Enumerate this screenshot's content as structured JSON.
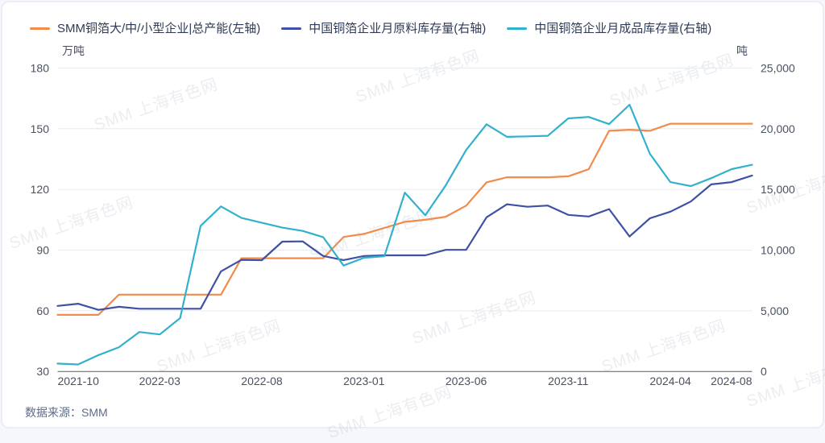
{
  "watermark": {
    "text": "SMM 上海有色网"
  },
  "footer": {
    "source_label": "数据来源：SMM"
  },
  "chart_data": {
    "type": "line",
    "title": "",
    "grid": true,
    "legend_position": "top",
    "x_categories": [
      "2021-10",
      "2021-11",
      "2021-12",
      "2022-01",
      "2022-02",
      "2022-03",
      "2022-04",
      "2022-05",
      "2022-06",
      "2022-07",
      "2022-08",
      "2022-09",
      "2022-10",
      "2022-11",
      "2022-12",
      "2023-01",
      "2023-02",
      "2023-03",
      "2023-04",
      "2023-05",
      "2023-06",
      "2023-07",
      "2023-08",
      "2023-09",
      "2023-10",
      "2023-11",
      "2023-12",
      "2024-01",
      "2024-02",
      "2024-03",
      "2024-04",
      "2024-05",
      "2024-06",
      "2024-07",
      "2024-08"
    ],
    "x_tick_labels": [
      "2021-10",
      "2022-03",
      "2022-08",
      "2023-01",
      "2023-06",
      "2023-11",
      "2024-04",
      "2024-08"
    ],
    "x_tick_indices": [
      0,
      5,
      10,
      15,
      20,
      25,
      30,
      34
    ],
    "left_axis": {
      "name": "万吨",
      "min": 30,
      "max": 180,
      "ticks": [
        30,
        60,
        90,
        120,
        150,
        180
      ],
      "tick_labels": [
        "30",
        "60",
        "90",
        "120",
        "150",
        "180"
      ]
    },
    "right_axis": {
      "name": "吨",
      "min": 0,
      "max": 25000,
      "ticks": [
        0,
        5000,
        10000,
        15000,
        20000,
        25000
      ],
      "tick_labels": [
        "0",
        "5,000",
        "10,000",
        "15,000",
        "20,000",
        "25,000"
      ]
    },
    "series": [
      {
        "name": "SMM铜箔大/中/小型企业|总产能(左轴)",
        "axis": "left",
        "unit": "万吨",
        "color": "#F28B4B",
        "values": [
          58,
          58,
          58,
          68,
          68,
          68,
          68,
          68,
          68,
          86,
          86,
          86,
          86,
          86,
          96.5,
          98,
          101,
          104,
          105,
          106.5,
          112,
          123.5,
          126,
          126,
          126,
          126.5,
          130,
          149,
          149.5,
          149,
          152.5,
          152.5,
          152.5,
          152.5,
          152.5
        ]
      },
      {
        "name": "中国铜箔企业月原料库存量(右轴)",
        "axis": "right",
        "unit": "吨",
        "color": "#3F51A3",
        "values": [
          5400,
          5580,
          5080,
          5330,
          5170,
          5170,
          5170,
          5170,
          8250,
          9200,
          9170,
          10700,
          10720,
          9520,
          9180,
          9520,
          9570,
          9570,
          9570,
          10020,
          10020,
          12700,
          13780,
          13570,
          13670,
          12900,
          12770,
          13380,
          11120,
          12620,
          13170,
          14000,
          15420,
          15600,
          16150
        ]
      },
      {
        "name": "中国铜箔企业月成品库存量(右轴)",
        "axis": "right",
        "unit": "吨",
        "color": "#32B1CC",
        "values": [
          650,
          580,
          1350,
          2000,
          3250,
          3050,
          4400,
          12000,
          13600,
          12650,
          12250,
          11850,
          11580,
          11070,
          8730,
          9370,
          9500,
          14730,
          12870,
          15330,
          18250,
          20370,
          19330,
          19370,
          19420,
          20850,
          20970,
          20380,
          21980,
          17930,
          15600,
          15270,
          15930,
          16670,
          17030
        ]
      }
    ]
  }
}
